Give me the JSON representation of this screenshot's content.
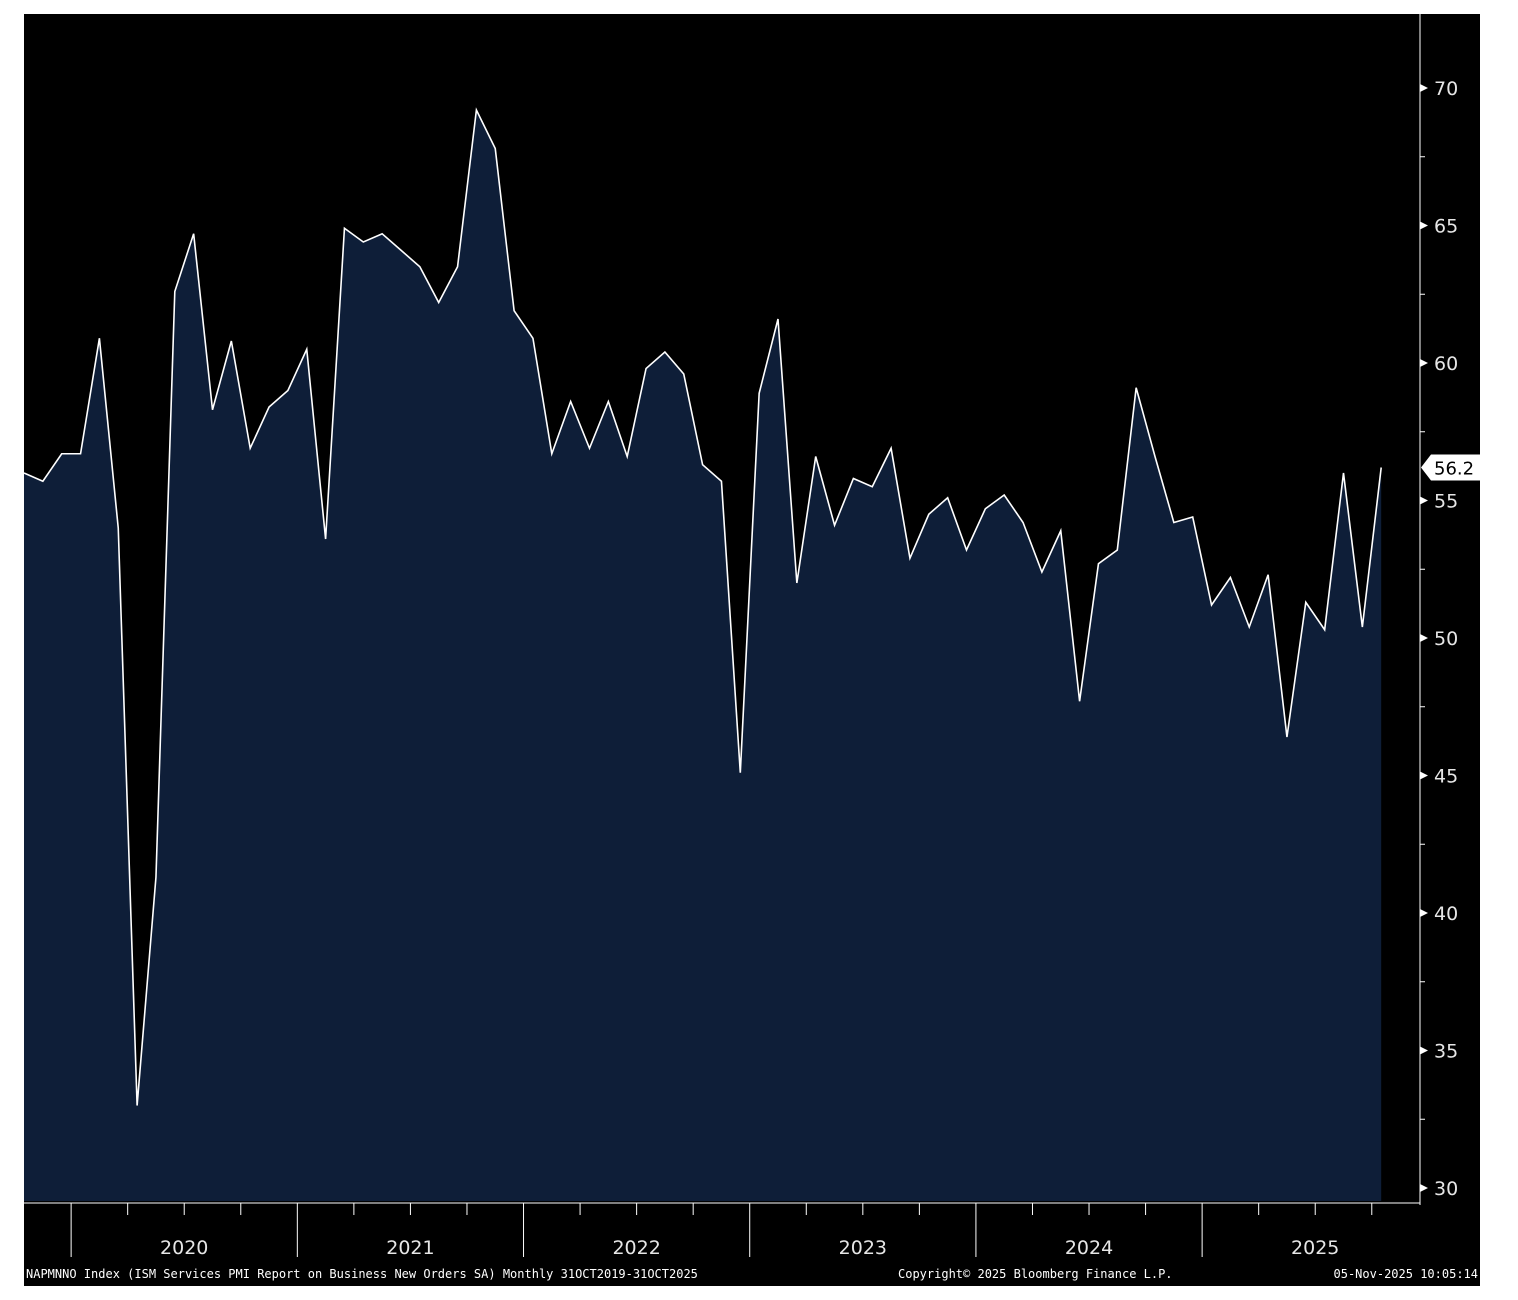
{
  "chart_data": {
    "type": "area",
    "title": "",
    "xlabel": "",
    "ylabel": "",
    "x_start": "2019-10",
    "x_end": "2025-10",
    "frequency": "monthly",
    "ylim": [
      30,
      72
    ],
    "yticks": [
      30,
      35,
      40,
      45,
      50,
      55,
      60,
      65,
      70
    ],
    "year_labels": [
      "2020",
      "2021",
      "2022",
      "2023",
      "2024",
      "2025"
    ],
    "last_value_label": "56.2",
    "grid": false,
    "colors": {
      "background": "#000000",
      "area_fill": "#0e1e38",
      "line": "#ffffff",
      "axis": "#ffffff",
      "last_value_box": "#ffffff"
    },
    "series": [
      {
        "x": [
          "2019-10",
          "2019-11",
          "2019-12",
          "2020-01",
          "2020-02",
          "2020-03",
          "2020-04",
          "2020-05",
          "2020-06",
          "2020-07",
          "2020-08",
          "2020-09",
          "2020-10",
          "2020-11",
          "2020-12",
          "2021-01",
          "2021-02",
          "2021-03",
          "2021-04",
          "2021-05",
          "2021-06",
          "2021-07",
          "2021-08",
          "2021-09",
          "2021-10",
          "2021-11",
          "2021-12",
          "2022-01",
          "2022-02",
          "2022-03",
          "2022-04",
          "2022-05",
          "2022-06",
          "2022-07",
          "2022-08",
          "2022-09",
          "2022-10",
          "2022-11",
          "2022-12",
          "2023-01",
          "2023-02",
          "2023-03",
          "2023-04",
          "2023-05",
          "2023-06",
          "2023-07",
          "2023-08",
          "2023-09",
          "2023-10",
          "2023-11",
          "2023-12",
          "2024-01",
          "2024-02",
          "2024-03",
          "2024-04",
          "2024-05",
          "2024-06",
          "2024-07",
          "2024-08",
          "2024-09",
          "2024-10",
          "2024-11",
          "2024-12",
          "2025-01",
          "2025-02",
          "2025-03",
          "2025-04",
          "2025-05",
          "2025-06",
          "2025-07",
          "2025-08",
          "2025-09",
          "2025-10"
        ],
        "values": [
          56.0,
          55.7,
          56.7,
          56.7,
          60.9,
          54.0,
          33.0,
          41.3,
          62.6,
          64.7,
          58.3,
          60.8,
          56.9,
          58.4,
          59.0,
          60.5,
          53.6,
          64.9,
          64.4,
          64.7,
          64.1,
          63.5,
          62.2,
          63.5,
          69.2,
          67.8,
          61.9,
          60.9,
          56.7,
          58.6,
          56.9,
          58.6,
          56.6,
          59.8,
          60.4,
          59.6,
          56.3,
          55.7,
          45.1,
          58.9,
          61.6,
          52.0,
          56.6,
          54.1,
          55.8,
          55.5,
          56.9,
          52.9,
          54.5,
          55.1,
          53.2,
          54.7,
          55.2,
          54.2,
          52.4,
          53.9,
          47.7,
          52.7,
          53.2,
          59.1,
          56.6,
          54.2,
          54.4,
          51.2,
          52.2,
          50.4,
          52.3,
          46.4,
          51.3,
          50.3,
          56.0,
          50.4,
          56.2
        ]
      }
    ]
  },
  "footer": {
    "description": "NAPMNNO Index (ISM Services PMI Report on Business New Orders SA) Monthly 31OCT2019-31OCT2025",
    "copyright": "Copyright© 2025 Bloomberg Finance L.P.",
    "timestamp": "05-Nov-2025 10:05:14"
  }
}
